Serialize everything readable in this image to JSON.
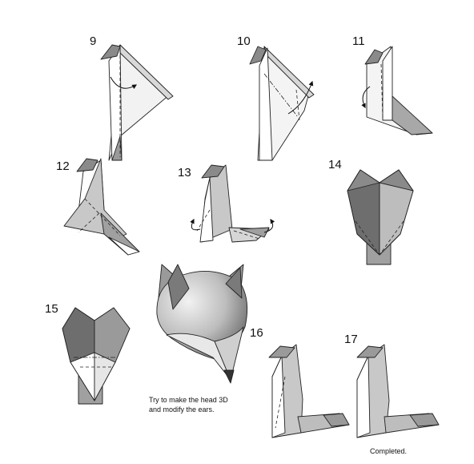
{
  "steps": [
    "9",
    "10",
    "11",
    "12",
    "13",
    "14",
    "15",
    "16",
    "17"
  ],
  "note_line1": "Try to make the head 3D",
  "note_line2": "and modify the ears.",
  "completed": "Completed.",
  "colors": {
    "paper_light": "#e6e6e6",
    "paper_mid": "#b8b8b8",
    "paper_dark": "#6e6e6e",
    "outline": "#222222"
  },
  "icons": [
    "fold-arrow-icon",
    "valley-fold-line",
    "mountain-fold-line"
  ]
}
